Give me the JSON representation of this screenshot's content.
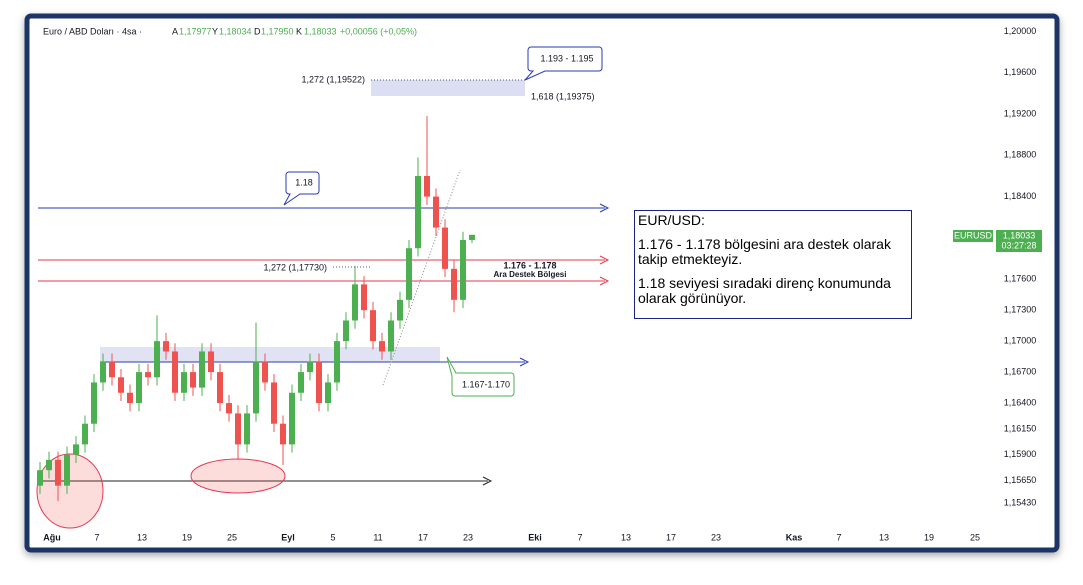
{
  "header": {
    "symbol": "Euro / ABD Doları · 4sa ·",
    "o_label": "A",
    "o": "1,17977",
    "h_label": "Y",
    "h": "1,18034",
    "l_label": "D",
    "l": "1,17950",
    "c_label": "K",
    "c": "1,18033",
    "change": "+0,00056 (+0,05%)"
  },
  "chart_data": {
    "type": "candlestick",
    "open": [
      1.156,
      1.1575,
      1.1585,
      1.156,
      1.159,
      1.16,
      1.162,
      1.166,
      1.168,
      1.1665,
      1.165,
      1.164,
      1.167,
      1.1665,
      1.17,
      1.169,
      1.165,
      1.167,
      1.1655,
      1.169,
      1.167,
      1.164,
      1.163,
      1.16,
      1.163,
      1.168,
      1.166,
      1.162,
      1.16,
      1.165,
      1.167,
      1.168,
      1.164,
      1.166,
      1.17,
      1.172,
      1.1755,
      1.173,
      1.17,
      1.169,
      1.172,
      1.174,
      1.179,
      1.186,
      1.184,
      1.181,
      1.177,
      1.174,
      1.1798
    ],
    "high": [
      1.1583,
      1.1593,
      1.1593,
      1.1598,
      1.1608,
      1.1628,
      1.1668,
      1.1688,
      1.1688,
      1.1673,
      1.1658,
      1.1678,
      1.1678,
      1.1725,
      1.1708,
      1.1698,
      1.1678,
      1.1678,
      1.1698,
      1.1698,
      1.1678,
      1.1648,
      1.1638,
      1.1638,
      1.1718,
      1.1688,
      1.1668,
      1.1628,
      1.1658,
      1.1678,
      1.1688,
      1.1688,
      1.1668,
      1.1708,
      1.1728,
      1.1773,
      1.1763,
      1.1738,
      1.1708,
      1.1728,
      1.1748,
      1.1798,
      1.1878,
      1.1918,
      1.1848,
      1.1818,
      1.1778,
      1.1806,
      1.1803
    ],
    "low": [
      1.1552,
      1.1567,
      1.1545,
      1.1552,
      1.1582,
      1.1592,
      1.1612,
      1.1652,
      1.1657,
      1.1642,
      1.1632,
      1.1632,
      1.1657,
      1.1657,
      1.1682,
      1.1642,
      1.1642,
      1.1647,
      1.1647,
      1.1662,
      1.1632,
      1.1622,
      1.1585,
      1.1592,
      1.1622,
      1.1652,
      1.1612,
      1.158,
      1.1592,
      1.1642,
      1.1662,
      1.1632,
      1.1632,
      1.1652,
      1.1692,
      1.1712,
      1.1722,
      1.1692,
      1.1682,
      1.1682,
      1.1712,
      1.1732,
      1.1782,
      1.1832,
      1.1802,
      1.1762,
      1.1728,
      1.1732,
      1.1795
    ],
    "close": [
      1.1575,
      1.1585,
      1.156,
      1.159,
      1.16,
      1.162,
      1.166,
      1.168,
      1.1665,
      1.165,
      1.164,
      1.167,
      1.1665,
      1.17,
      1.169,
      1.165,
      1.167,
      1.1655,
      1.169,
      1.167,
      1.164,
      1.163,
      1.16,
      1.163,
      1.168,
      1.166,
      1.162,
      1.16,
      1.165,
      1.167,
      1.168,
      1.164,
      1.166,
      1.17,
      1.172,
      1.1755,
      1.173,
      1.17,
      1.169,
      1.172,
      1.174,
      1.179,
      1.186,
      1.184,
      1.181,
      1.177,
      1.174,
      1.1798,
      1.1803
    ],
    "up_color": "#4caf50",
    "down_color": "#ef5350",
    "ylim": [
      1.1519,
      1.2013
    ],
    "yticks": [
      {
        "value": 1.2,
        "label": "1,20000"
      },
      {
        "value": 1.196,
        "label": "1,19600"
      },
      {
        "value": 1.192,
        "label": "1,19200"
      },
      {
        "value": 1.188,
        "label": "1,18800"
      },
      {
        "value": 1.184,
        "label": "1,18400"
      },
      {
        "value": 1.176,
        "label": "1,17600"
      },
      {
        "value": 1.173,
        "label": "1,17300"
      },
      {
        "value": 1.17,
        "label": "1,17000"
      },
      {
        "value": 1.167,
        "label": "1,16700"
      },
      {
        "value": 1.164,
        "label": "1,16400"
      },
      {
        "value": 1.1615,
        "label": "1,16150"
      },
      {
        "value": 1.159,
        "label": "1,15900"
      },
      {
        "value": 1.1565,
        "label": "1,15650"
      },
      {
        "value": 1.1543,
        "label": "1,15430"
      }
    ],
    "xticks": [
      "Ağu",
      "7",
      "13",
      "19",
      "25",
      "Eyl",
      "5",
      "11",
      "17",
      "23",
      "Eki",
      "7",
      "13",
      "17",
      "23",
      "Kas",
      "7",
      "13",
      "19",
      "25"
    ]
  },
  "annotations": {
    "target_zone": "1.193 - 1.195",
    "fib_1272_top": "1,272 (1,19522)",
    "fib_1618": "1,618 (1,19375)",
    "resistance": "1.18",
    "fib_1272_mid": "1,272 (1,17730)",
    "support_zone": "1.176 - 1.178",
    "support_name": "Ara Destek Bölgesi",
    "lower_zone": "1.167-1.170"
  },
  "textbox": {
    "title": "EUR/USD:",
    "p1": "1.176 - 1.178 bölgesini ara destek olarak takip etmekteyiz.",
    "p2": "1.18 seviyesi sıradaki direnç konumunda olarak görünüyor."
  },
  "price_tag": {
    "symbol": "EURUSD",
    "price": "1,18033",
    "timer": "03:27:28"
  }
}
